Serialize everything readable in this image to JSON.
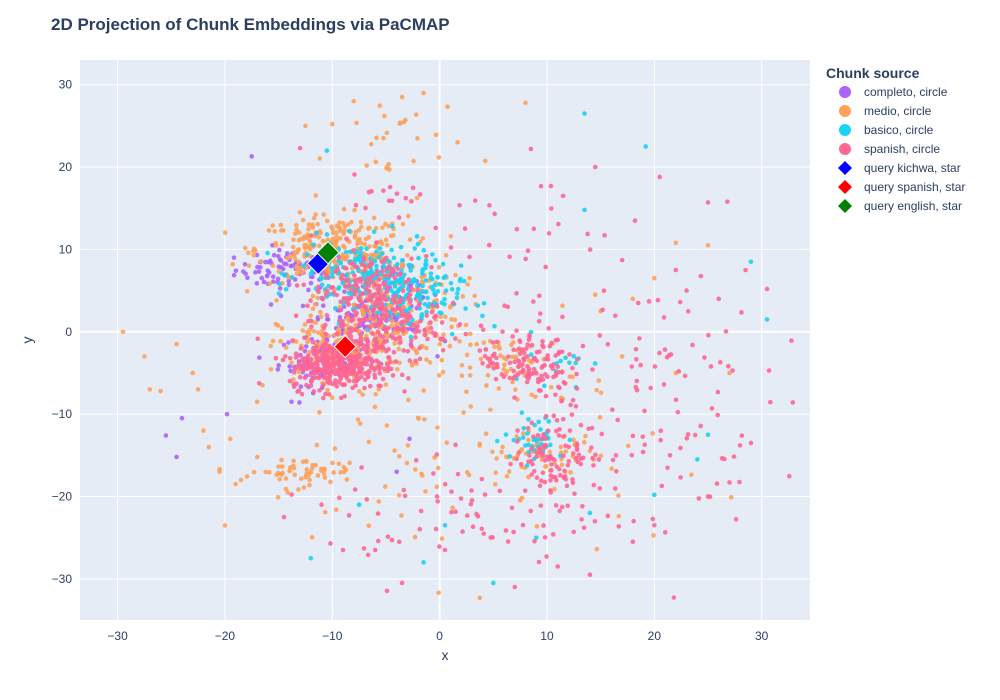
{
  "chart_data": {
    "type": "scatter",
    "title": "2D Projection of Chunk Embeddings via PaCMAP",
    "xlabel": "x",
    "ylabel": "y",
    "xlim": [
      -33.5,
      34.5
    ],
    "ylim": [
      -35,
      33
    ],
    "xticks": [
      -30,
      -20,
      -10,
      0,
      10,
      20,
      30
    ],
    "yticks": [
      -30,
      -20,
      -10,
      0,
      10,
      20,
      30
    ],
    "grid": true,
    "legend_title": "Chunk source",
    "legend_position": "right",
    "series": [
      {
        "name": "completo, circle",
        "color": "#ab63fa",
        "marker": "circle",
        "clusters": [
          {
            "center": [
              -14,
              7.5
            ],
            "spread": [
              2.5,
              1.2
            ],
            "count": 90
          },
          {
            "center": [
              -7,
              1
            ],
            "spread": [
              2.5,
              2
            ],
            "count": 120
          },
          {
            "center": [
              -11,
              -3.5
            ],
            "spread": [
              2,
              1.5
            ],
            "count": 80
          },
          {
            "center": [
              -4,
              4
            ],
            "spread": [
              2,
              2
            ],
            "count": 60
          }
        ],
        "points": [
          [
            -17.5,
            21.3
          ],
          [
            -25.5,
            -12.6
          ],
          [
            -24.5,
            -15.2
          ],
          [
            -24,
            -10.5
          ],
          [
            -19.8,
            -10
          ],
          [
            -13.8,
            -8.5
          ],
          [
            -4,
            -17
          ],
          [
            -2.8,
            -13
          ]
        ]
      },
      {
        "name": "medio, circle",
        "color": "#ffa15a",
        "marker": "circle",
        "clusters": [
          {
            "center": [
              -10,
              10
            ],
            "spread": [
              3.5,
              2
            ],
            "count": 260
          },
          {
            "center": [
              -5,
              3
            ],
            "spread": [
              3.5,
              3.5
            ],
            "count": 220
          },
          {
            "center": [
              -9,
              -2
            ],
            "spread": [
              3,
              2
            ],
            "count": 150
          },
          {
            "center": [
              -13,
              -17
            ],
            "spread": [
              2.5,
              0.8
            ],
            "count": 50
          },
          {
            "center": [
              7,
              -4
            ],
            "spread": [
              3,
              1.8
            ],
            "count": 60
          },
          {
            "center": [
              9,
              -15
            ],
            "spread": [
              3,
              1.2
            ],
            "count": 50
          },
          {
            "center": [
              -4,
              22
            ],
            "spread": [
              3,
              4
            ],
            "count": 30
          },
          {
            "center": [
              0,
              -15
            ],
            "spread": [
              10,
              7
            ],
            "count": 90
          }
        ],
        "points": [
          [
            -29.5,
            0
          ],
          [
            -27.5,
            -3
          ],
          [
            -27,
            -7
          ],
          [
            -26,
            -7.2
          ],
          [
            -24.5,
            -1.5
          ],
          [
            -23,
            -5
          ],
          [
            -22.5,
            -7
          ],
          [
            -22,
            -12
          ],
          [
            -21.5,
            -14
          ],
          [
            -20.5,
            -17
          ],
          [
            -19.5,
            -13
          ],
          [
            -19,
            -18.5
          ],
          [
            -18.5,
            -18
          ],
          [
            -17,
            -8.5
          ],
          [
            -16.5,
            -6.5
          ],
          [
            -12.5,
            25
          ],
          [
            -10,
            25.2
          ],
          [
            -8,
            28
          ],
          [
            -3.5,
            28.5
          ],
          [
            -1.5,
            29
          ],
          [
            8,
            27.8
          ],
          [
            14.5,
            4.5
          ],
          [
            17,
            -3
          ],
          [
            18,
            4
          ],
          [
            20,
            6.5
          ],
          [
            22,
            10.8
          ],
          [
            25,
            10.5
          ],
          [
            27,
            -5
          ],
          [
            22,
            -5
          ],
          [
            15,
            2.5
          ]
        ]
      },
      {
        "name": "basico, circle",
        "color": "#19d3f3",
        "marker": "circle",
        "clusters": [
          {
            "center": [
              -7,
              7
            ],
            "spread": [
              3,
              2
            ],
            "count": 200
          },
          {
            "center": [
              -3,
              4
            ],
            "spread": [
              2.5,
              2
            ],
            "count": 120
          },
          {
            "center": [
              9,
              -13
            ],
            "spread": [
              1.5,
              1.5
            ],
            "count": 40
          },
          {
            "center": [
              10,
              -3
            ],
            "spread": [
              2,
              2
            ],
            "count": 15
          }
        ],
        "points": [
          [
            -10.5,
            22
          ],
          [
            13.5,
            26.5
          ],
          [
            13.5,
            14.8
          ],
          [
            19.2,
            22.5
          ],
          [
            29,
            8.5
          ],
          [
            30.5,
            1.5
          ],
          [
            -12,
            -27.5
          ],
          [
            -1.5,
            -28
          ],
          [
            5,
            -30.5
          ],
          [
            25,
            -12.5
          ],
          [
            20,
            -19.8
          ],
          [
            14,
            -22
          ],
          [
            9,
            -25
          ],
          [
            0.5,
            -23.5
          ],
          [
            -7.5,
            -21
          ],
          [
            24,
            -15.5
          ]
        ]
      },
      {
        "name": "spanish, circle",
        "color": "#ff6692",
        "marker": "circle",
        "clusters": [
          {
            "center": [
              -9.5,
              -4
            ],
            "spread": [
              2.2,
              1.5
            ],
            "count": 320
          },
          {
            "center": [
              -6,
              1
            ],
            "spread": [
              3,
              3
            ],
            "count": 220
          },
          {
            "center": [
              -7,
              6
            ],
            "spread": [
              2.5,
              2.5
            ],
            "count": 100
          },
          {
            "center": [
              8,
              -3.5
            ],
            "spread": [
              2,
              2
            ],
            "count": 120
          },
          {
            "center": [
              11,
              -15
            ],
            "spread": [
              2,
              2.2
            ],
            "count": 90
          },
          {
            "center": [
              18,
              -8
            ],
            "spread": [
              6,
              8
            ],
            "count": 120
          },
          {
            "center": [
              3,
              -22
            ],
            "spread": [
              7,
              4
            ],
            "count": 70
          },
          {
            "center": [
              -5,
              17
            ],
            "spread": [
              2,
              1
            ],
            "count": 15
          },
          {
            "center": [
              7,
              10
            ],
            "spread": [
              4,
              4
            ],
            "count": 25
          }
        ],
        "points": [
          [
            -13,
            22.3
          ],
          [
            -14.5,
            -22.5
          ],
          [
            -11,
            -21
          ],
          [
            -9,
            -26.5
          ],
          [
            -6,
            -26.5
          ],
          [
            -3.5,
            -30.5
          ],
          [
            0.5,
            -26.5
          ],
          [
            7,
            -31
          ],
          [
            11,
            -28.5
          ],
          [
            14,
            -29.5
          ],
          [
            18,
            -25.5
          ],
          [
            20,
            -23.5
          ],
          [
            25,
            -20
          ],
          [
            29,
            -13.5
          ],
          [
            27,
            -18.3
          ],
          [
            28.5,
            7.5
          ],
          [
            30.5,
            5.2
          ],
          [
            25,
            15.7
          ],
          [
            26.8,
            15.8
          ],
          [
            20.5,
            18.8
          ],
          [
            14.5,
            20
          ],
          [
            18.2,
            13.5
          ],
          [
            8.5,
            22.2
          ],
          [
            11.5,
            16.5
          ],
          [
            17,
            8.7
          ],
          [
            18.5,
            3.5
          ],
          [
            22,
            7.5
          ],
          [
            23,
            5
          ],
          [
            26,
            4
          ]
        ]
      },
      {
        "name": "query kichwa, star",
        "color": "#0000ff",
        "marker": "diamond",
        "points": [
          [
            -11.3,
            8.3
          ]
        ]
      },
      {
        "name": "query spanish, star",
        "color": "#ff0000",
        "marker": "diamond",
        "points": [
          [
            -8.8,
            -1.8
          ]
        ]
      },
      {
        "name": "query english, star",
        "color": "#008000",
        "marker": "diamond",
        "points": [
          [
            -10.4,
            9.6
          ]
        ]
      }
    ]
  }
}
